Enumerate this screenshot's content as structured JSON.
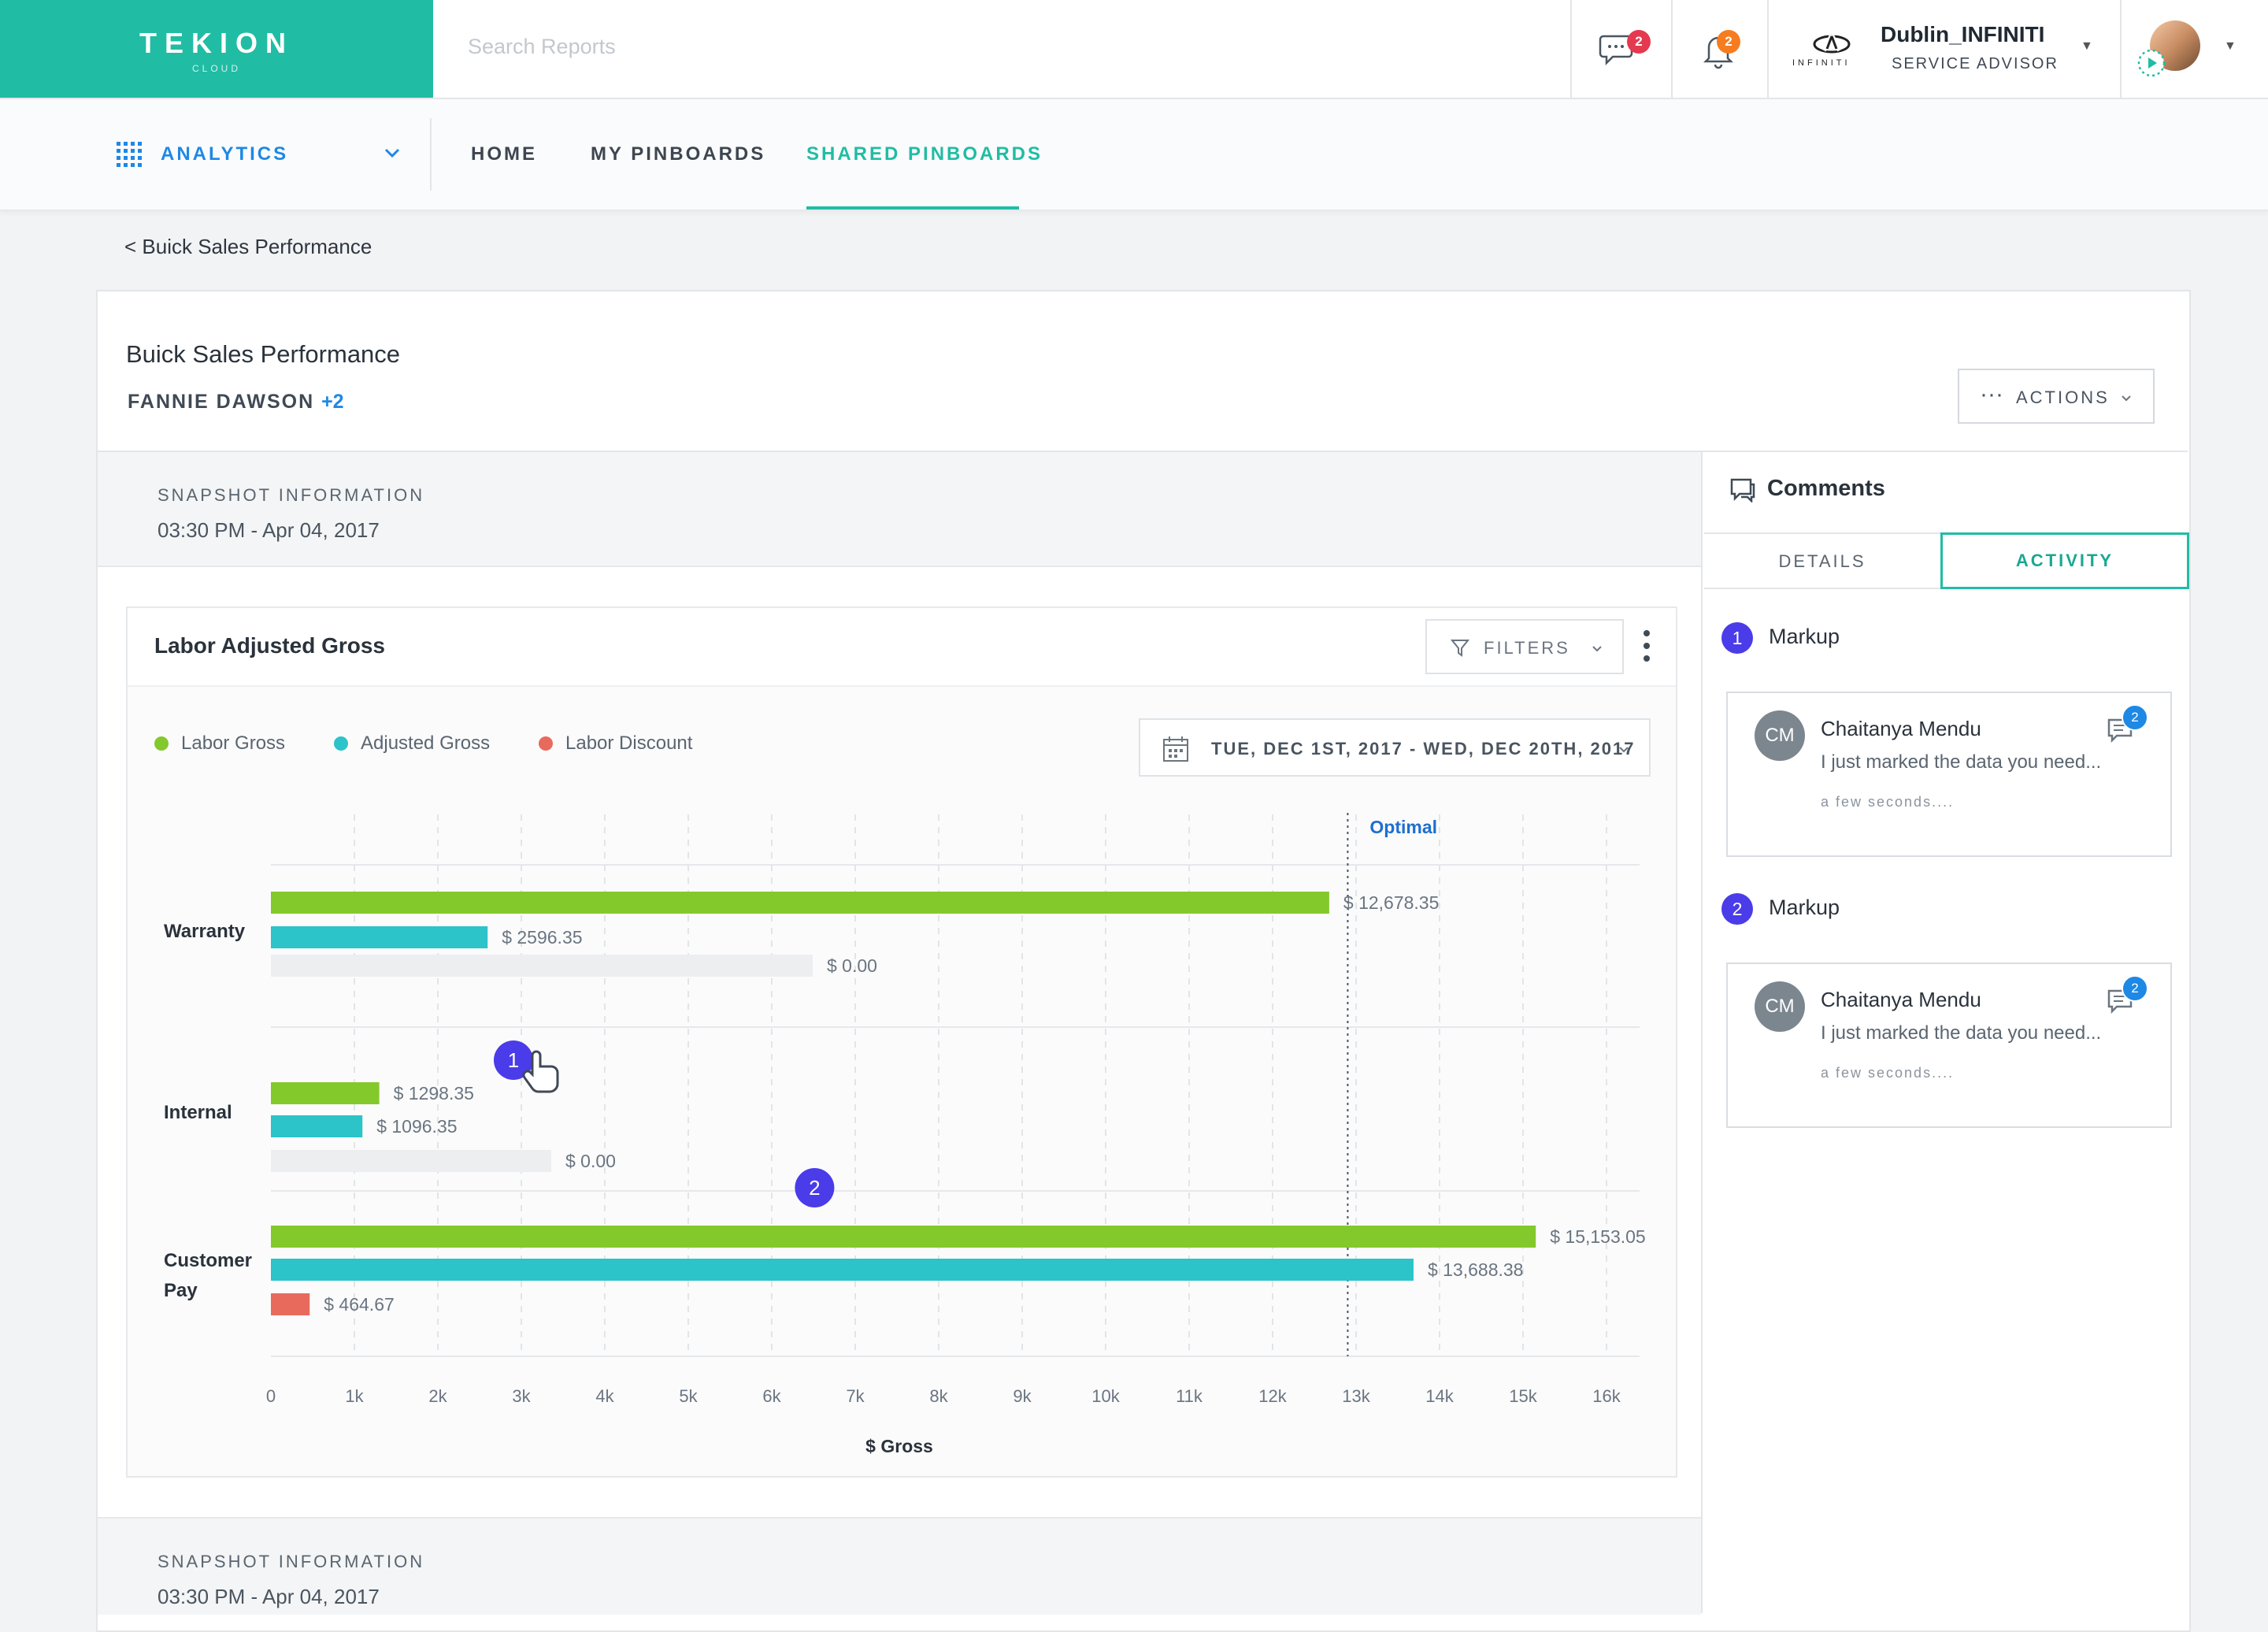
{
  "header": {
    "logo": "TEKION",
    "logo_sub": "CLOUD",
    "search_placeholder": "Search Reports",
    "chat_badge": "2",
    "notif_badge": "2",
    "brand_small": "INFINITI",
    "dealer_name": "Dublin_INFINITI",
    "dealer_role": "SERVICE ADVISOR"
  },
  "subnav": {
    "app_label": "ANALYTICS",
    "links": [
      "HOME",
      "MY PINBOARDS",
      "SHARED PINBOARDS"
    ],
    "active": "SHARED PINBOARDS"
  },
  "breadcrumb": "< Buick Sales Performance",
  "report": {
    "title": "Buick Sales Performance",
    "owner": "FANNIE DAWSON",
    "owner_more": "+2",
    "actions_label": "ACTIONS"
  },
  "snapshots": [
    {
      "label": "SNAPSHOT INFORMATION",
      "time": "03:30 PM - Apr 04,  2017"
    },
    {
      "label": "SNAPSHOT INFORMATION",
      "time": "03:30 PM - Apr 04,  2017"
    }
  ],
  "chart_panel": {
    "title": "Labor Adjusted Gross",
    "filters_label": "FILTERS",
    "date_range": "TUE, DEC 1ST, 2017 - WED, DEC 20TH, 2017"
  },
  "colors": {
    "teal": "#21bca4",
    "labor_gross": "#84c92c",
    "adjusted_gross": "#2cc3c9",
    "labor_discount": "#e86a5c",
    "markup": "#4a3ce8"
  },
  "chart_data": {
    "type": "bar",
    "orientation": "horizontal",
    "categories": [
      "Warranty",
      "Internal",
      "Customer Pay"
    ],
    "series": [
      {
        "name": "Labor Gross",
        "values": [
          12678.35,
          1298.35,
          15153.05
        ],
        "labels": [
          "$ 12,678.35",
          "$ 1298.35",
          "$ 15,153.05"
        ],
        "color": "#84c92c"
      },
      {
        "name": "Adjusted Gross",
        "values": [
          2596.35,
          1096.35,
          13688.38
        ],
        "labels": [
          "$ 2596.35",
          "$ 1096.35",
          "$ 13,688.38"
        ],
        "color": "#2cc3c9"
      },
      {
        "name": "Labor Discount",
        "values": [
          0,
          0,
          464.67
        ],
        "labels": [
          "$ 0.00",
          "$ 0.00",
          "$ 464.67"
        ],
        "color": "#e86a5c"
      }
    ],
    "xlim": [
      0,
      16000
    ],
    "xticks": [
      "0",
      "1k",
      "2k",
      "3k",
      "4k",
      "5k",
      "6k",
      "7k",
      "8k",
      "9k",
      "10k",
      "11k",
      "12k",
      "13k",
      "14k",
      "15k",
      "16k"
    ],
    "xlabel": "$ Gross",
    "ylabel": "",
    "reference_line": {
      "label": "Optimal",
      "value": 12900
    },
    "markers": [
      {
        "label": "1",
        "category": "Internal",
        "value": 3000
      },
      {
        "label": "2",
        "category": "Internal",
        "value": 6400
      }
    ],
    "legend_position": "top-left",
    "grid": true
  },
  "comments_panel": {
    "title": "Comments",
    "tabs": [
      "DETAILS",
      "ACTIVITY"
    ],
    "active_tab": "ACTIVITY",
    "items": [
      {
        "number": "1",
        "title": "Markup",
        "initials": "CM",
        "author": "Chaitanya Mendu",
        "text": "I just marked the data you need...",
        "time": "a few seconds....",
        "badge": "2"
      },
      {
        "number": "2",
        "title": "Markup",
        "initials": "CM",
        "author": "Chaitanya Mendu",
        "text": "I just marked the data you need...",
        "time": "a few seconds....",
        "badge": "2"
      }
    ]
  }
}
